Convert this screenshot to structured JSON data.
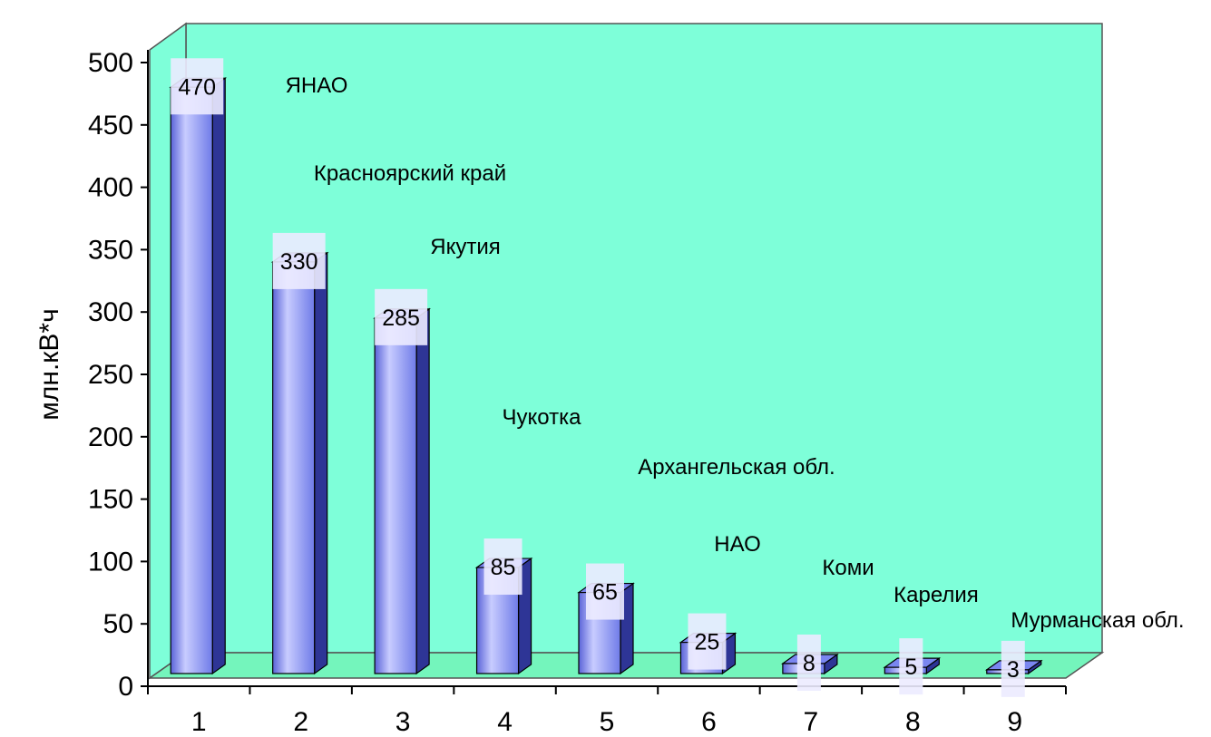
{
  "chart_data": {
    "type": "bar",
    "categories": [
      "1",
      "2",
      "3",
      "4",
      "5",
      "6",
      "7",
      "8",
      "9"
    ],
    "values": [
      470,
      330,
      285,
      85,
      65,
      25,
      8,
      5,
      3
    ],
    "region_labels": [
      "ЯНАО",
      "Красноярский край",
      "Якутия",
      "Чукотка",
      "Архангельская обл.",
      "НАО",
      "Коми",
      "Карелия",
      "Мурманская обл."
    ],
    "value_labels": [
      "470",
      "330",
      "285",
      "85",
      "65",
      "25",
      "8",
      "5",
      "3"
    ],
    "y_ticks": [
      "0",
      "50",
      "100",
      "150",
      "200",
      "250",
      "300",
      "350",
      "400",
      "450",
      "500"
    ],
    "ylabel": "млн.кВ*ч",
    "xlabel": "",
    "title": "",
    "ylim": [
      0,
      500
    ],
    "grid": false,
    "legend": "none",
    "colors": {
      "wall": "#7effd9",
      "floor": "#74f5bc",
      "bar": "#7a86f0",
      "bar_highlight": "#c8ccff",
      "bar_shadow": "#2e3596",
      "label_box": "#ecebff"
    }
  }
}
